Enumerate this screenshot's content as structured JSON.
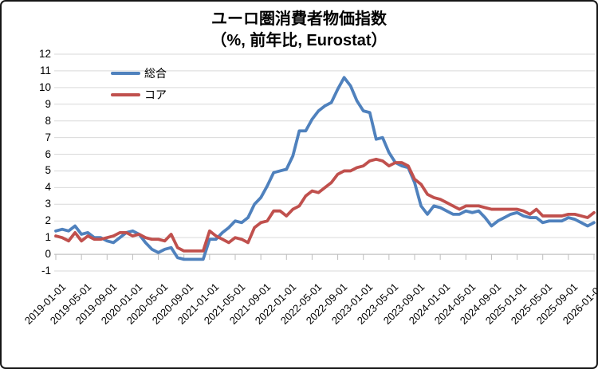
{
  "chart": {
    "title_line1": "ユーロ圏消費者物価指数",
    "title_line2": "（%, 前年比, Eurostat）"
  },
  "chart_data": {
    "type": "line",
    "title": "ユーロ圏消費者物価指数",
    "subtitle": "（%, 前年比, Eurostat）",
    "x_unit": "month",
    "x_start": "2019-01-01",
    "x_end": "2026-01-01",
    "x_tick_labels": [
      "2019-01-01",
      "2019-05-01",
      "2019-09-01",
      "2020-01-01",
      "2020-05-01",
      "2020-09-01",
      "2021-01-01",
      "2021-05-01",
      "2021-09-01",
      "2022-01-01",
      "2022-05-01",
      "2022-09-01",
      "2023-01-01",
      "2023-05-01",
      "2023-09-01",
      "2024-01-01",
      "2024-05-01",
      "2024-09-01",
      "2025-01-01",
      "2025-05-01",
      "2025-09-01",
      "2026-01-01"
    ],
    "ylim": [
      -1,
      12
    ],
    "y_tick_labels": [
      "12",
      "11",
      "10",
      "9",
      "8",
      "7",
      "6",
      "5",
      "4",
      "3",
      "2",
      "1",
      "0",
      "-1"
    ],
    "grid": "horizontal",
    "legend_position": "top-left-inside",
    "series": [
      {
        "name": "総合",
        "color": "#4F81BD",
        "values": [
          1.4,
          1.5,
          1.4,
          1.7,
          1.2,
          1.3,
          1.0,
          1.0,
          0.8,
          0.7,
          1.0,
          1.3,
          1.4,
          1.2,
          0.7,
          0.3,
          0.1,
          0.3,
          0.4,
          -0.2,
          -0.3,
          -0.3,
          -0.3,
          -0.3,
          0.9,
          0.9,
          1.3,
          1.6,
          2.0,
          1.9,
          2.2,
          3.0,
          3.4,
          4.1,
          4.9,
          5.0,
          5.1,
          5.9,
          7.4,
          7.4,
          8.1,
          8.6,
          8.9,
          9.1,
          9.9,
          10.6,
          10.1,
          9.2,
          8.6,
          8.5,
          6.9,
          7.0,
          6.1,
          5.5,
          5.3,
          5.2,
          4.3,
          2.9,
          2.4,
          2.9,
          2.8,
          2.6,
          2.4,
          2.4,
          2.6,
          2.5,
          2.6,
          2.2,
          1.7,
          2.0,
          2.2,
          2.4,
          2.5,
          2.3,
          2.2,
          2.2,
          1.9,
          2.0,
          2.0,
          2.0,
          2.2,
          2.1,
          1.9,
          1.7,
          1.9
        ]
      },
      {
        "name": "コア",
        "color": "#C0504D",
        "values": [
          1.1,
          1.0,
          0.8,
          1.3,
          0.8,
          1.1,
          0.9,
          0.9,
          1.0,
          1.1,
          1.3,
          1.3,
          1.1,
          1.2,
          1.0,
          0.9,
          0.9,
          0.8,
          1.2,
          0.4,
          0.2,
          0.2,
          0.2,
          0.2,
          1.4,
          1.1,
          0.9,
          0.7,
          1.0,
          0.9,
          0.7,
          1.6,
          1.9,
          2.0,
          2.6,
          2.6,
          2.3,
          2.7,
          2.9,
          3.5,
          3.8,
          3.7,
          4.0,
          4.3,
          4.8,
          5.0,
          5.0,
          5.2,
          5.3,
          5.6,
          5.7,
          5.6,
          5.3,
          5.5,
          5.5,
          5.3,
          4.5,
          4.2,
          3.6,
          3.4,
          3.3,
          3.1,
          2.9,
          2.7,
          2.9,
          2.9,
          2.9,
          2.8,
          2.7,
          2.7,
          2.7,
          2.7,
          2.7,
          2.6,
          2.4,
          2.7,
          2.3,
          2.3,
          2.3,
          2.3,
          2.4,
          2.4,
          2.3,
          2.2,
          2.5
        ]
      }
    ],
    "colors": {
      "gridline": "#D9D9D9",
      "axis": "#BDBDBD",
      "text": "#000000",
      "background": "#FFFFFF"
    }
  }
}
